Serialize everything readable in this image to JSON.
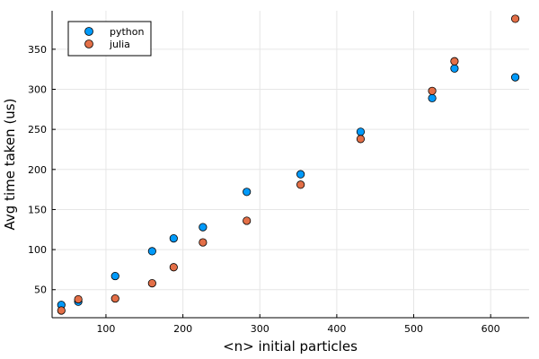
{
  "chart_data": {
    "type": "scatter",
    "xlabel": "<n> initial particles",
    "ylabel": "Avg time taken (us)",
    "xlim": [
      30,
      650
    ],
    "ylim": [
      15,
      398
    ],
    "x_ticks": [
      100,
      200,
      300,
      400,
      500,
      600
    ],
    "y_ticks": [
      50,
      100,
      150,
      200,
      250,
      300,
      350
    ],
    "grid": true,
    "legend_position": "top-left",
    "series": [
      {
        "name": "python",
        "color": "#009AFA",
        "x": [
          42,
          64,
          112,
          160,
          188,
          226,
          283,
          353,
          431,
          524,
          553,
          632
        ],
        "y": [
          31,
          35,
          67,
          98,
          114,
          128,
          172,
          194,
          247,
          289,
          326,
          315
        ]
      },
      {
        "name": "julia",
        "color": "#E36F47",
        "x": [
          42,
          64,
          112,
          160,
          188,
          226,
          283,
          353,
          431,
          524,
          553,
          632
        ],
        "y": [
          24,
          38,
          39,
          58,
          78,
          109,
          136,
          181,
          238,
          298,
          335,
          388
        ]
      }
    ]
  }
}
